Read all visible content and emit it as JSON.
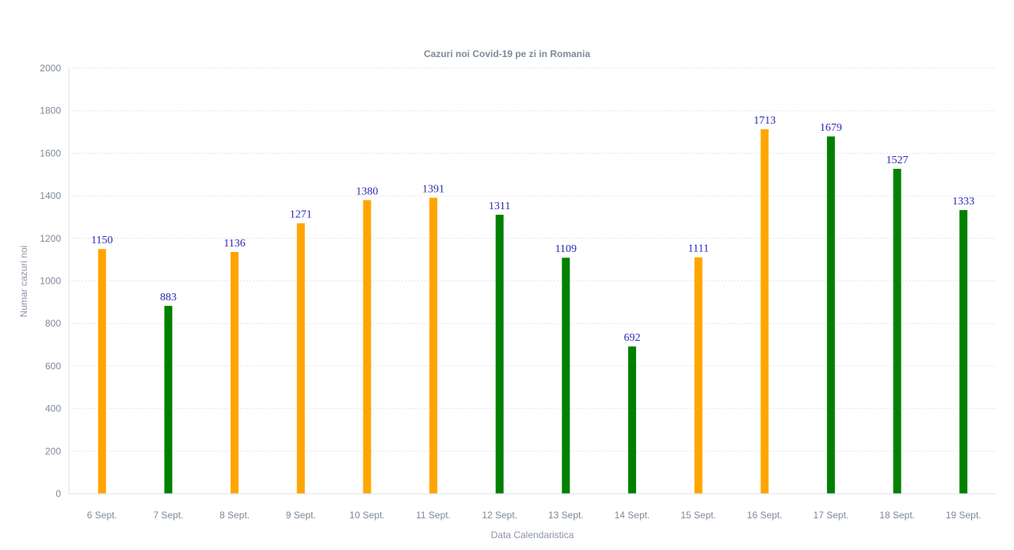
{
  "chart_data": {
    "type": "bar",
    "title": "Cazuri noi Covid-19 pe zi in Romania",
    "xlabel": "Data Calendaristica",
    "ylabel": "Numar cazuri noi",
    "ylim": [
      0,
      2000
    ],
    "yticks": [
      "0",
      "200",
      "400",
      "600",
      "800",
      "1000",
      "1200",
      "1400",
      "1600",
      "1800",
      "2000"
    ],
    "grid": true,
    "categories": [
      "6 Sept.",
      "7 Sept.",
      "8 Sept.",
      "9 Sept.",
      "10 Sept.",
      "11 Sept.",
      "12 Sept.",
      "13 Sept.",
      "14 Sept.",
      "15 Sept.",
      "16 Sept.",
      "17 Sept.",
      "18 Sept.",
      "19 Sept."
    ],
    "values": [
      1150,
      883,
      1136,
      1271,
      1380,
      1391,
      1311,
      1109,
      692,
      1111,
      1713,
      1679,
      1527,
      1333
    ],
    "bar_colors": [
      "#ffa500",
      "#008000",
      "#ffa500",
      "#ffa500",
      "#ffa500",
      "#ffa500",
      "#008000",
      "#008000",
      "#008000",
      "#ffa500",
      "#ffa500",
      "#008000",
      "#008000",
      "#008000"
    ]
  }
}
